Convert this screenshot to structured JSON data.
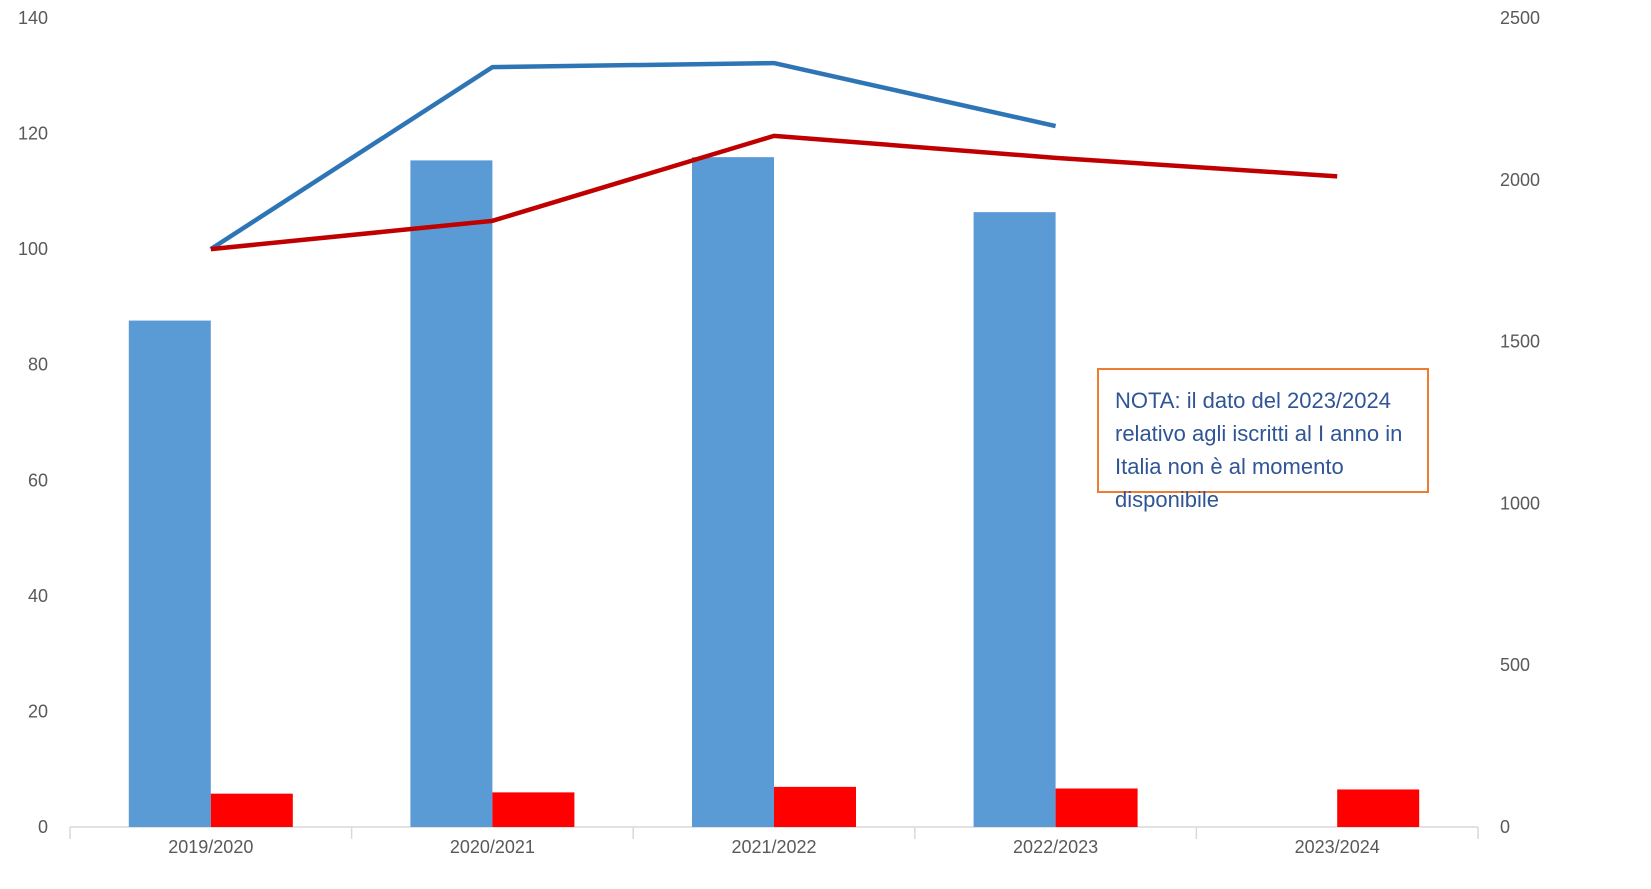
{
  "chart_data": {
    "type": "bar",
    "categories": [
      "2019/2020",
      "2020/2021",
      "2021/2022",
      "2022/2023",
      "2023/2024"
    ],
    "left_axis": {
      "ylim": [
        0,
        140
      ],
      "ticks": [
        "0",
        "20",
        "40",
        "60",
        "80",
        "100",
        "120",
        "140"
      ]
    },
    "right_axis": {
      "ylim": [
        0,
        2500
      ],
      "ticks": [
        "0",
        "500",
        "1000",
        "1500",
        "2000",
        "2500"
      ]
    },
    "series": [
      {
        "kind": "bar",
        "axis": "right",
        "color": "#5B9BD5",
        "values": [
          1565,
          2060,
          2070,
          1900,
          null
        ]
      },
      {
        "kind": "bar",
        "axis": "right",
        "color": "#FF0000",
        "values": [
          103,
          107,
          124,
          119,
          116
        ]
      },
      {
        "kind": "line",
        "axis": "left",
        "color": "#2E75B6",
        "values": [
          100,
          131.5,
          132.2,
          121.3,
          null
        ]
      },
      {
        "kind": "line",
        "axis": "left",
        "color": "#C00000",
        "values": [
          100,
          104.9,
          119.6,
          115.8,
          112.6
        ]
      }
    ],
    "grid": false,
    "legend": "none"
  },
  "note": {
    "text": "NOTA: il dato del 2023/2024 relativo agli iscritti al I anno in Italia non è al momento disponibile"
  }
}
